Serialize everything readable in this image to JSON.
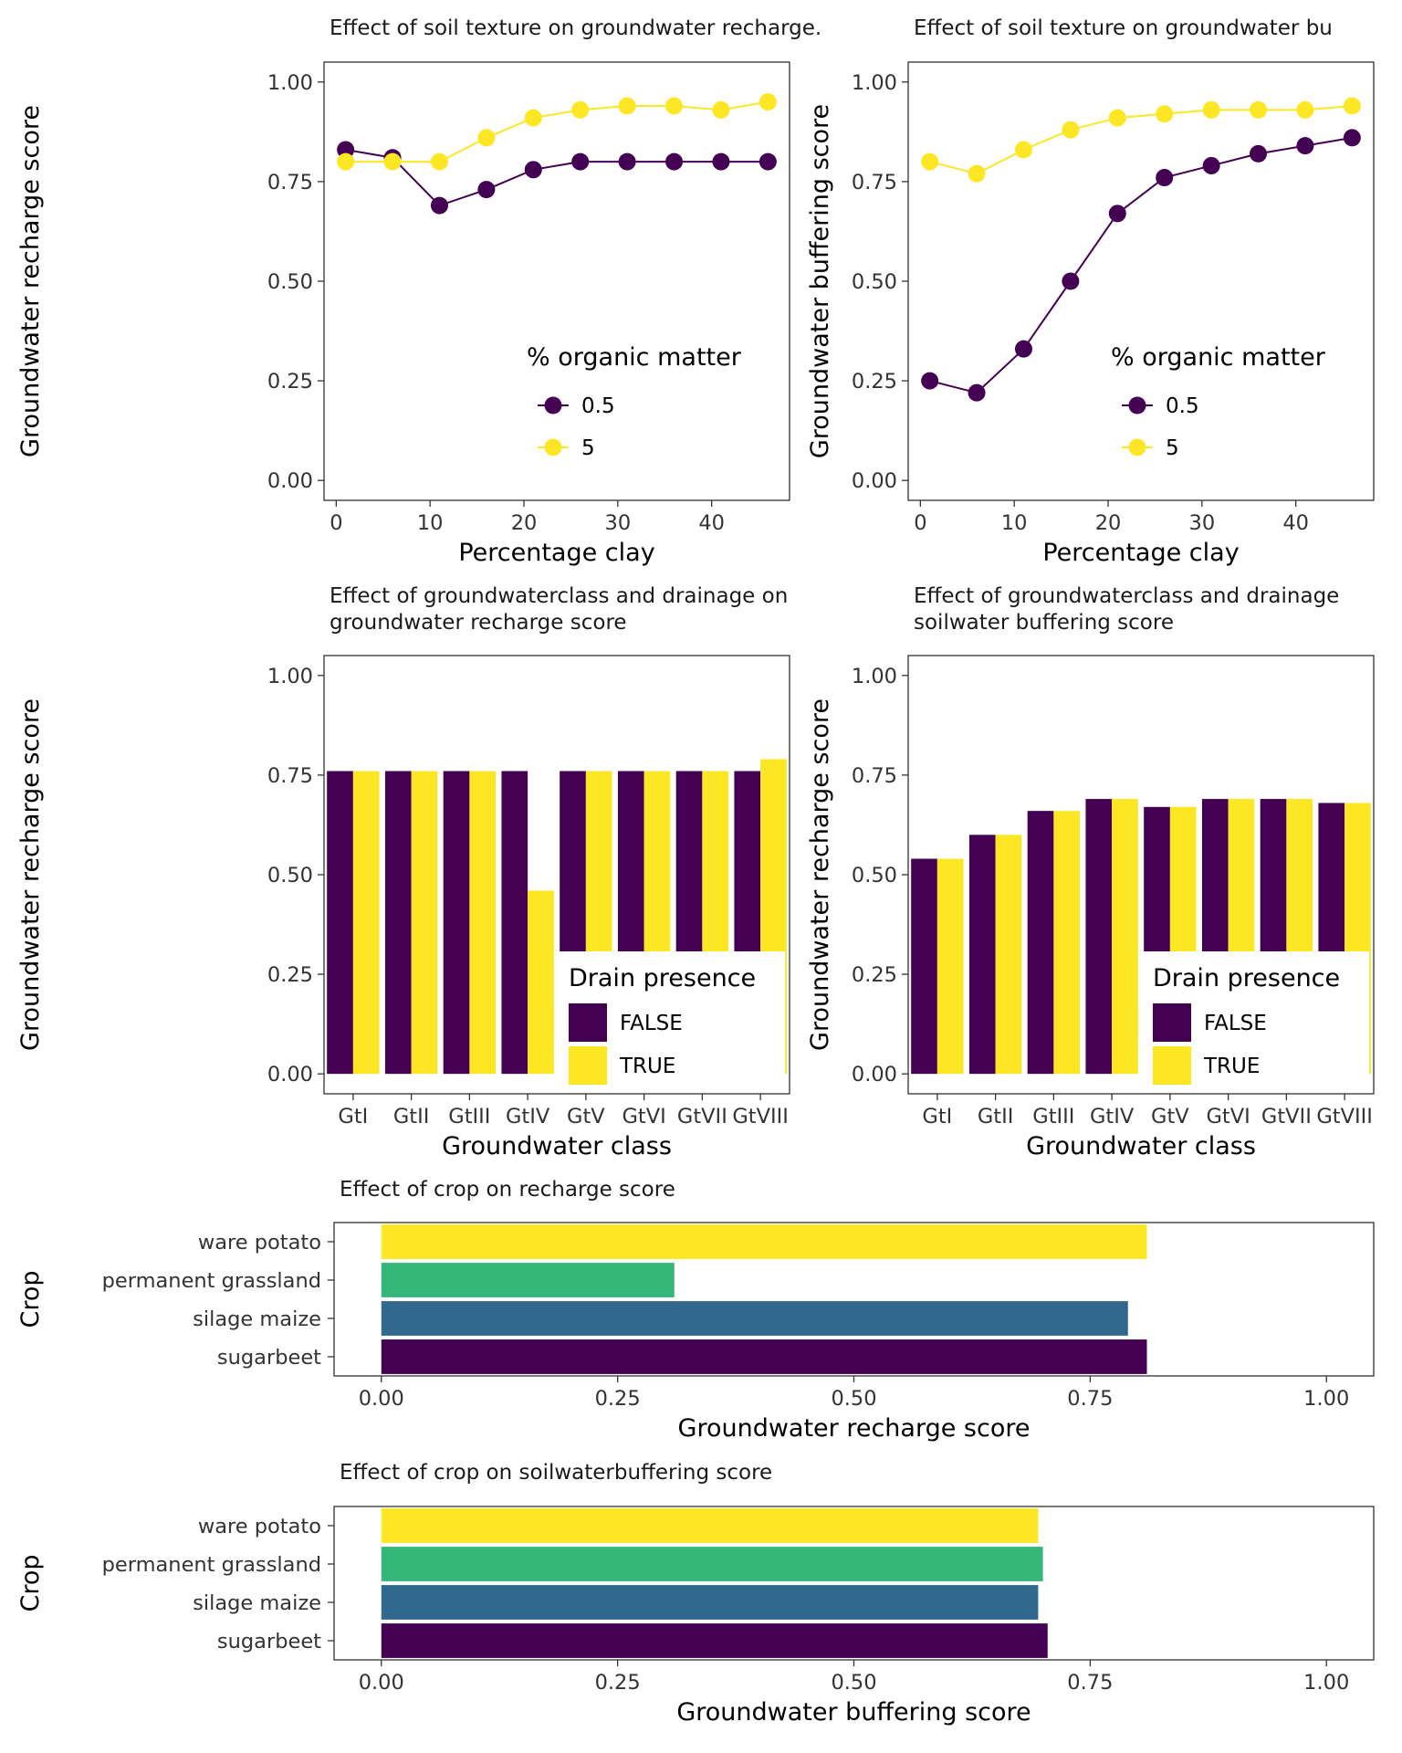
{
  "colors": {
    "purple": "#440154",
    "yellow": "#FDE725",
    "green": "#35B779",
    "blue": "#31688E"
  },
  "chart_data": [
    {
      "id": "recharge-texture",
      "type": "line",
      "title": "Effect of soil texture on groundwater recharge.",
      "xlabel": "Percentage clay",
      "ylabel": "Groundwater recharge score",
      "xlim": [
        -1.3,
        48.3
      ],
      "ylim": [
        -0.05,
        1.05
      ],
      "xticks": [
        "0",
        "10",
        "20",
        "30",
        "40"
      ],
      "yticks": [
        "0.00",
        "0.25",
        "0.50",
        "0.75",
        "1.00"
      ],
      "x": [
        1,
        6,
        11,
        16,
        21,
        26,
        31,
        36,
        41,
        46
      ],
      "series": [
        {
          "name": "0.5",
          "color": "#440154",
          "values": [
            0.83,
            0.81,
            0.69,
            0.73,
            0.78,
            0.8,
            0.8,
            0.8,
            0.8,
            0.8
          ]
        },
        {
          "name": "5",
          "color": "#FDE725",
          "values": [
            0.8,
            0.8,
            0.8,
            0.86,
            0.91,
            0.93,
            0.94,
            0.94,
            0.93,
            0.95
          ]
        }
      ],
      "legend": {
        "title": "% organic matter",
        "position": "bottom-right"
      }
    },
    {
      "id": "buffering-texture",
      "type": "line",
      "title": "Effect of soil texture on groundwater bu",
      "xlabel": "Percentage clay",
      "ylabel": "Groundwater buffering score",
      "xlim": [
        -1.3,
        48.3
      ],
      "ylim": [
        -0.05,
        1.05
      ],
      "xticks": [
        "0",
        "10",
        "20",
        "30",
        "40"
      ],
      "yticks": [
        "0.00",
        "0.25",
        "0.50",
        "0.75",
        "1.00"
      ],
      "x": [
        1,
        6,
        11,
        16,
        21,
        26,
        31,
        36,
        41,
        46
      ],
      "series": [
        {
          "name": "0.5",
          "color": "#440154",
          "values": [
            0.25,
            0.22,
            0.33,
            0.5,
            0.67,
            0.76,
            0.79,
            0.82,
            0.84,
            0.86
          ]
        },
        {
          "name": "5",
          "color": "#FDE725",
          "values": [
            0.8,
            0.77,
            0.83,
            0.88,
            0.91,
            0.92,
            0.93,
            0.93,
            0.93,
            0.94
          ]
        }
      ],
      "legend": {
        "title": "% organic matter",
        "position": "bottom-right"
      }
    },
    {
      "id": "recharge-gwclass",
      "type": "bar",
      "title": [
        "Effect of groundwaterclass and drainage on",
        "groundwater recharge score"
      ],
      "xlabel": "Groundwater class",
      "ylabel": "Groundwater recharge score",
      "ylim": [
        -0.05,
        1.05
      ],
      "yticks": [
        "0.00",
        "0.25",
        "0.50",
        "0.75",
        "1.00"
      ],
      "categories": [
        "GtI",
        "GtII",
        "GtIII",
        "GtIV",
        "GtV",
        "GtVI",
        "GtVII",
        "GtVIII"
      ],
      "series": [
        {
          "name": "FALSE",
          "color": "#440154",
          "values": [
            0.76,
            0.76,
            0.76,
            0.76,
            0.76,
            0.76,
            0.76,
            0.76
          ]
        },
        {
          "name": "TRUE",
          "color": "#FDE725",
          "values": [
            0.76,
            0.76,
            0.76,
            0.46,
            0.76,
            0.76,
            0.76,
            0.79
          ]
        }
      ],
      "legend": {
        "title": "Drain presence",
        "position": "bottom-right"
      }
    },
    {
      "id": "buffering-gwclass",
      "type": "bar",
      "title": [
        "Effect of groundwaterclass and drainage",
        "soilwater buffering score"
      ],
      "xlabel": "Groundwater class",
      "ylabel": "Groundwater recharge score",
      "ylim": [
        -0.05,
        1.05
      ],
      "yticks": [
        "0.00",
        "0.25",
        "0.50",
        "0.75",
        "1.00"
      ],
      "categories": [
        "GtI",
        "GtII",
        "GtIII",
        "GtIV",
        "GtV",
        "GtVI",
        "GtVII",
        "GtVIII"
      ],
      "series": [
        {
          "name": "FALSE",
          "color": "#440154",
          "values": [
            0.54,
            0.6,
            0.66,
            0.69,
            0.67,
            0.69,
            0.69,
            0.68
          ]
        },
        {
          "name": "TRUE",
          "color": "#FDE725",
          "values": [
            0.54,
            0.6,
            0.66,
            0.69,
            0.67,
            0.69,
            0.69,
            0.68
          ]
        }
      ],
      "legend": {
        "title": "Drain presence",
        "position": "bottom-right"
      }
    },
    {
      "id": "recharge-crop",
      "type": "bar",
      "orientation": "horizontal",
      "title": "Effect of crop on recharge score",
      "xlabel": "Groundwater recharge score",
      "ylabel": "Crop",
      "xlim": [
        -0.05,
        1.05
      ],
      "xticks": [
        "0.00",
        "0.25",
        "0.50",
        "0.75",
        "1.00"
      ],
      "categories": [
        "ware potato",
        "permanent grassland",
        "silage maize",
        "sugarbeet"
      ],
      "bar_colors": [
        "#FDE725",
        "#35B779",
        "#31688E",
        "#440154"
      ],
      "values": [
        0.81,
        0.31,
        0.79,
        0.81
      ]
    },
    {
      "id": "buffering-crop",
      "type": "bar",
      "orientation": "horizontal",
      "title": "Effect of crop on soilwaterbuffering score",
      "xlabel": "Groundwater buffering score",
      "ylabel": "Crop",
      "xlim": [
        -0.05,
        1.05
      ],
      "xticks": [
        "0.00",
        "0.25",
        "0.50",
        "0.75",
        "1.00"
      ],
      "categories": [
        "ware potato",
        "permanent grassland",
        "silage maize",
        "sugarbeet"
      ],
      "bar_colors": [
        "#FDE725",
        "#35B779",
        "#31688E",
        "#440154"
      ],
      "values": [
        0.695,
        0.7,
        0.695,
        0.705
      ]
    }
  ]
}
